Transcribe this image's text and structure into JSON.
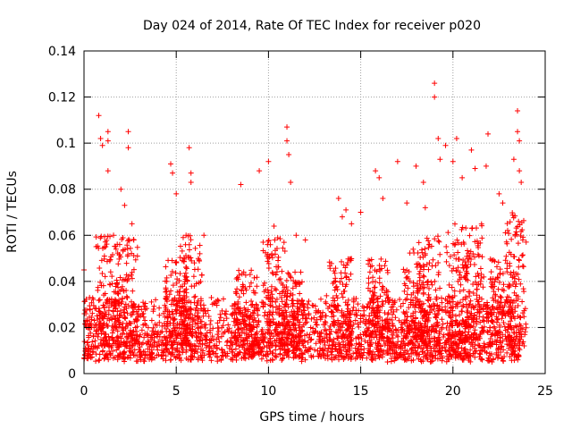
{
  "chart_data": {
    "type": "scatter",
    "title": "Day 024 of 2014, Rate Of TEC Index for receiver p020",
    "xlabel": "GPS time / hours",
    "ylabel": "ROTI / TECUs",
    "xlim": [
      0,
      25
    ],
    "ylim": [
      0,
      0.14
    ],
    "xticks": [
      0,
      5,
      10,
      15,
      20,
      25
    ],
    "yticks": [
      0,
      0.02,
      0.04,
      0.06,
      0.08,
      0.1,
      0.12,
      0.14
    ],
    "xtick_labels": [
      "0",
      "5",
      "10",
      "15",
      "20",
      "25"
    ],
    "ytick_labels": [
      "0",
      "0.02",
      "0.04",
      "0.06",
      "0.08",
      "0.1",
      "0.12",
      "0.14"
    ],
    "grid": true,
    "marker": "+",
    "series": [
      {
        "name": "ROTI",
        "color": "#ff0000",
        "x_range": [
          0,
          23.7
        ],
        "typical_range": [
          0.005,
          0.03
        ],
        "points": [
          [
            0.0,
            0.045
          ],
          [
            0.1,
            0.026
          ],
          [
            0.3,
            0.033
          ],
          [
            0.8,
            0.112
          ],
          [
            0.9,
            0.102
          ],
          [
            1.0,
            0.099
          ],
          [
            1.3,
            0.105
          ],
          [
            1.3,
            0.101
          ],
          [
            1.3,
            0.088
          ],
          [
            1.6,
            0.06
          ],
          [
            2.0,
            0.08
          ],
          [
            2.2,
            0.073
          ],
          [
            2.4,
            0.105
          ],
          [
            2.4,
            0.098
          ],
          [
            2.6,
            0.065
          ],
          [
            2.7,
            0.058
          ],
          [
            4.7,
            0.091
          ],
          [
            4.8,
            0.087
          ],
          [
            5.0,
            0.078
          ],
          [
            5.7,
            0.098
          ],
          [
            5.8,
            0.087
          ],
          [
            5.8,
            0.083
          ],
          [
            6.5,
            0.06
          ],
          [
            8.5,
            0.082
          ],
          [
            9.5,
            0.088
          ],
          [
            10.0,
            0.092
          ],
          [
            10.3,
            0.064
          ],
          [
            11.0,
            0.107
          ],
          [
            11.0,
            0.101
          ],
          [
            11.1,
            0.095
          ],
          [
            11.2,
            0.083
          ],
          [
            11.5,
            0.06
          ],
          [
            12.0,
            0.058
          ],
          [
            13.8,
            0.076
          ],
          [
            14.0,
            0.068
          ],
          [
            14.2,
            0.071
          ],
          [
            14.5,
            0.065
          ],
          [
            15.0,
            0.07
          ],
          [
            15.8,
            0.088
          ],
          [
            16.0,
            0.085
          ],
          [
            16.2,
            0.076
          ],
          [
            17.0,
            0.092
          ],
          [
            17.5,
            0.074
          ],
          [
            18.0,
            0.09
          ],
          [
            18.4,
            0.083
          ],
          [
            18.5,
            0.072
          ],
          [
            19.0,
            0.126
          ],
          [
            19.0,
            0.12
          ],
          [
            19.2,
            0.102
          ],
          [
            19.3,
            0.093
          ],
          [
            19.6,
            0.099
          ],
          [
            20.0,
            0.092
          ],
          [
            20.2,
            0.102
          ],
          [
            20.5,
            0.085
          ],
          [
            21.0,
            0.097
          ],
          [
            21.2,
            0.089
          ],
          [
            21.8,
            0.09
          ],
          [
            21.9,
            0.104
          ],
          [
            22.5,
            0.078
          ],
          [
            22.7,
            0.074
          ],
          [
            23.3,
            0.093
          ],
          [
            23.5,
            0.114
          ],
          [
            23.5,
            0.105
          ],
          [
            23.6,
            0.101
          ],
          [
            23.6,
            0.088
          ],
          [
            23.7,
            0.083
          ]
        ]
      }
    ]
  }
}
